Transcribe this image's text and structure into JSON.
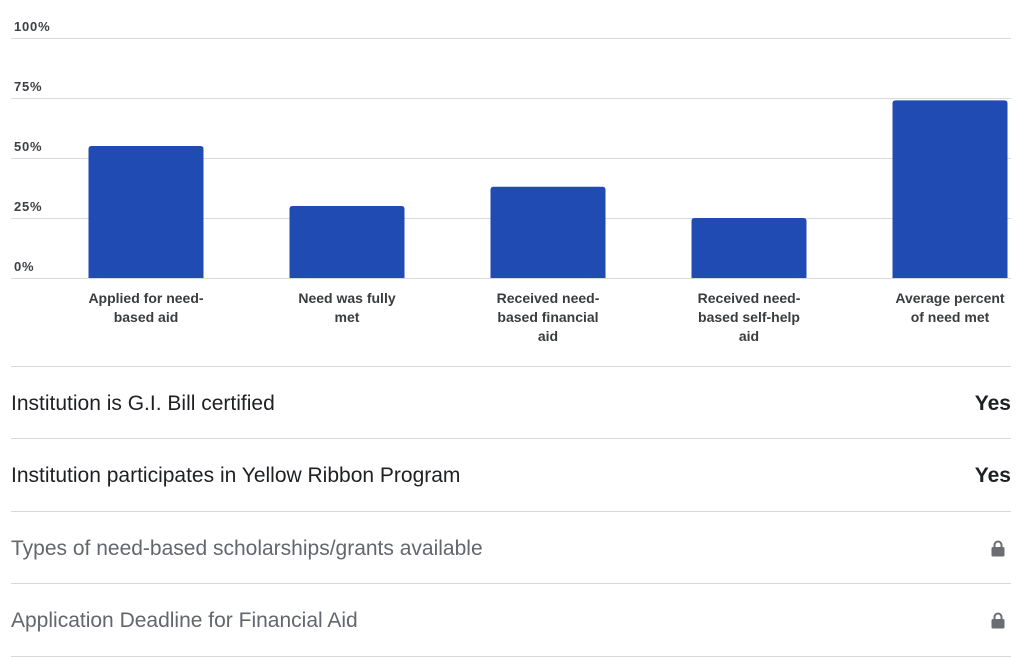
{
  "chart_data": {
    "type": "bar",
    "categories": [
      "Applied for need-based aid",
      "Need was fully met",
      "Received need-based financial aid",
      "Received need-based self-help aid",
      "Average percent of need met"
    ],
    "category_lines": [
      [
        "Applied for need-",
        "based aid"
      ],
      [
        "Need was fully",
        "met"
      ],
      [
        "Received need-",
        "based financial",
        "aid"
      ],
      [
        "Received need-",
        "based self-help",
        "aid"
      ],
      [
        "Average percent",
        "of need met"
      ]
    ],
    "values": [
      55,
      30,
      38,
      25,
      74
    ],
    "ylim": [
      0,
      100
    ],
    "yticks": [
      0,
      25,
      50,
      75,
      100
    ],
    "ytick_labels": [
      "0%",
      "25%",
      "50%",
      "75%",
      "100%"
    ],
    "grid": true,
    "bar_color": "#1f4bb3"
  },
  "details": [
    {
      "label": "Institution is G.I. Bill certified",
      "value": "Yes",
      "locked": false
    },
    {
      "label": "Institution participates in Yellow Ribbon Program",
      "value": "Yes",
      "locked": false
    },
    {
      "label": "Types of need-based scholarships/grants available",
      "value": "",
      "locked": true,
      "icon": "lock-icon"
    },
    {
      "label": "Application Deadline for Financial Aid",
      "value": "",
      "locked": true,
      "icon": "lock-icon"
    }
  ]
}
